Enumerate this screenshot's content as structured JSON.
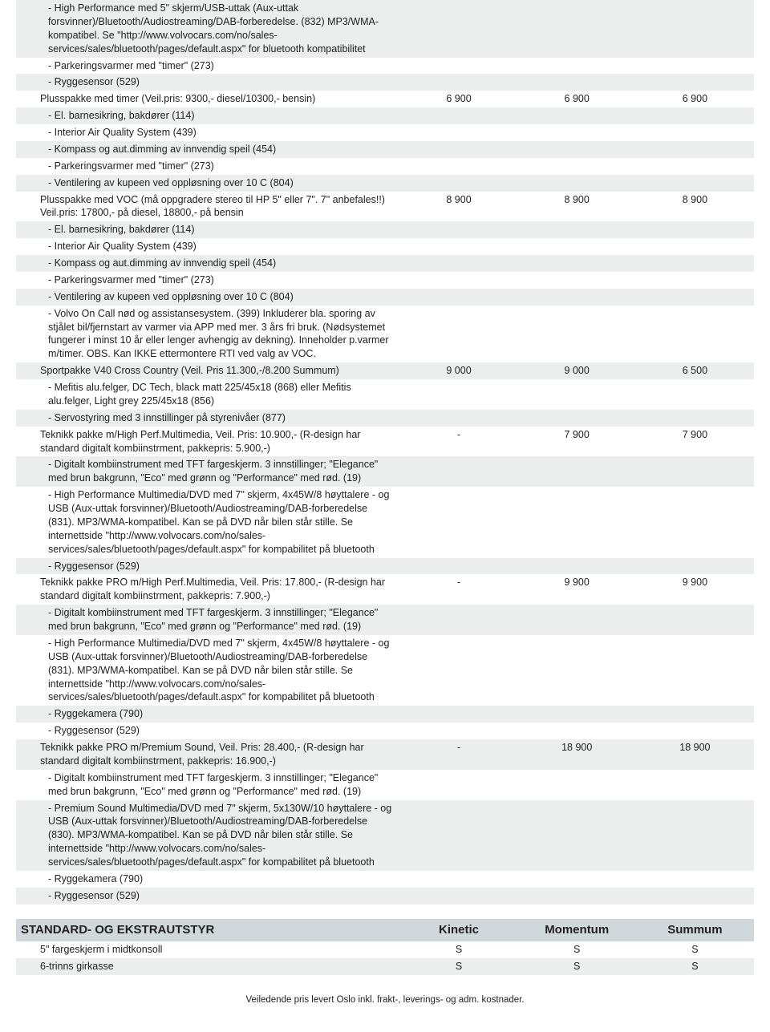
{
  "colors": {
    "row_white": "#ffffff",
    "row_grey": "#eceded",
    "row_header": "#d0d8dc",
    "text": "#222222"
  },
  "fontsizes": {
    "body": 12.5,
    "header": 15,
    "footer": 11.5
  },
  "rows1": [
    {
      "bg": "grey",
      "indent": 2,
      "desc": "- High Performance med 5\" skjerm/USB-uttak (Aux-uttak forsvinner)/Bluetooth/Audiostreaming/DAB-forberedelse. (832) MP3/WMA-kompatibel. Se \"http://www.volvocars.com/no/sales-services/sales/bluetooth/pages/default.aspx\" for bluetooth kompatibilitet",
      "c1": "",
      "c2": "",
      "c3": ""
    },
    {
      "bg": "white",
      "indent": 2,
      "desc": "- Parkeringsvarmer med \"timer\" (273)",
      "c1": "",
      "c2": "",
      "c3": ""
    },
    {
      "bg": "grey",
      "indent": 2,
      "desc": "- Ryggesensor (529)",
      "c1": "",
      "c2": "",
      "c3": ""
    },
    {
      "bg": "white",
      "indent": 1,
      "desc": "Plusspakke med timer (Veil.pris: 9300,- diesel/10300,- bensin)",
      "c1": "6 900",
      "c2": "6 900",
      "c3": "6 900"
    },
    {
      "bg": "grey",
      "indent": 2,
      "desc": "- El. barnesikring, bakdører (114)",
      "c1": "",
      "c2": "",
      "c3": ""
    },
    {
      "bg": "white",
      "indent": 2,
      "desc": "- Interior Air Quality System (439)",
      "c1": "",
      "c2": "",
      "c3": ""
    },
    {
      "bg": "grey",
      "indent": 2,
      "desc": "- Kompass og aut.dimming av innvendig speil (454)",
      "c1": "",
      "c2": "",
      "c3": ""
    },
    {
      "bg": "white",
      "indent": 2,
      "desc": "- Parkeringsvarmer med \"timer\" (273)",
      "c1": "",
      "c2": "",
      "c3": ""
    },
    {
      "bg": "grey",
      "indent": 2,
      "desc": "- Ventilering av kupeen ved oppløsning over 10 C (804)",
      "c1": "",
      "c2": "",
      "c3": ""
    },
    {
      "bg": "white",
      "indent": 1,
      "desc": "Plusspakke med VOC (må oppgradere stereo til HP 5\" eller 7\". 7\" anbefales!!) Veil.pris: 17800,- på diesel, 18800,- på bensin",
      "c1": "8 900",
      "c2": "8 900",
      "c3": "8 900"
    },
    {
      "bg": "grey",
      "indent": 2,
      "desc": "- El. barnesikring, bakdører (114)",
      "c1": "",
      "c2": "",
      "c3": ""
    },
    {
      "bg": "white",
      "indent": 2,
      "desc": "- Interior Air Quality System (439)",
      "c1": "",
      "c2": "",
      "c3": ""
    },
    {
      "bg": "grey",
      "indent": 2,
      "desc": "- Kompass og aut.dimming av innvendig speil (454)",
      "c1": "",
      "c2": "",
      "c3": ""
    },
    {
      "bg": "white",
      "indent": 2,
      "desc": "- Parkeringsvarmer med \"timer\" (273)",
      "c1": "",
      "c2": "",
      "c3": ""
    },
    {
      "bg": "grey",
      "indent": 2,
      "desc": "- Ventilering av kupeen ved oppløsning over 10 C (804)",
      "c1": "",
      "c2": "",
      "c3": ""
    },
    {
      "bg": "white",
      "indent": 2,
      "desc": "- Volvo On Call nød og assistansesystem. (399) Inkluderer bla. sporing av stjålet bil/fjernstart av varmer via APP med mer. 3 års fri bruk. (Nødsystemet fungerer i minst 10 år eller lenger avhengig av dekning). Inneholder p.varmer m/timer. OBS. Kan IKKE ettermontere RTI ved valg av VOC.",
      "c1": "",
      "c2": "",
      "c3": ""
    },
    {
      "bg": "grey",
      "indent": 1,
      "desc": "Sportpakke V40 Cross Country (Veil. Pris 11.300,-/8.200 Summum)",
      "c1": "9 000",
      "c2": "9 000",
      "c3": "6 500"
    },
    {
      "bg": "white",
      "indent": 2,
      "desc": "- Mefitis alu.felger, DC Tech, black matt 225/45x18 (868) eller Mefitis alu.felger, Light grey 225/45x18 (856)",
      "c1": "",
      "c2": "",
      "c3": ""
    },
    {
      "bg": "grey",
      "indent": 2,
      "desc": "- Servostyring med 3 innstillinger på styrenivåer (877)",
      "c1": "",
      "c2": "",
      "c3": ""
    },
    {
      "bg": "white",
      "indent": 1,
      "desc": "Teknikk pakke m/High Perf.Multimedia, Veil. Pris: 10.900,- (R-design har standard digitalt kombiinstrment, pakkepris: 5.900,-)",
      "c1": "-",
      "c2": "7 900",
      "c3": "7 900"
    },
    {
      "bg": "grey",
      "indent": 2,
      "desc": "- Digitalt kombiinstrument med TFT fargeskjerm. 3 innstillinger; \"Elegance\" med brun bakgrunn, \"Eco\" med grønn og \"Performance\" med rød. (19)",
      "c1": "",
      "c2": "",
      "c3": ""
    },
    {
      "bg": "white",
      "indent": 2,
      "desc": "- High Performance Multimedia/DVD med 7\" skjerm, 4x45W/8 høyttalere - og USB (Aux-uttak forsvinner)/Bluetooth/Audiostreaming/DAB-forberedelse (831). MP3/WMA-kompatibel. Kan se på DVD når bilen står stille. Se internettside \"http://www.volvocars.com/no/sales-services/sales/bluetooth/pages/default.aspx\" for kompabilitet på bluetooth",
      "c1": "",
      "c2": "",
      "c3": ""
    },
    {
      "bg": "grey",
      "indent": 2,
      "desc": "- Ryggesensor (529)",
      "c1": "",
      "c2": "",
      "c3": ""
    },
    {
      "bg": "white",
      "indent": 1,
      "desc": "Teknikk pakke PRO m/High Perf.Multimedia, Veil. Pris: 17.800,- (R-design har standard digitalt kombiinstrment, pakkepris: 7.900,-)",
      "c1": "-",
      "c2": "9 900",
      "c3": "9 900"
    },
    {
      "bg": "grey",
      "indent": 2,
      "desc": "- Digitalt kombiinstrument med TFT fargeskjerm. 3 innstillinger; \"Elegance\" med brun bakgrunn, \"Eco\" med grønn og \"Performance\" med rød. (19)",
      "c1": "",
      "c2": "",
      "c3": ""
    },
    {
      "bg": "white",
      "indent": 2,
      "desc": "- High Performance Multimedia/DVD med 7\" skjerm, 4x45W/8 høyttalere - og USB (Aux-uttak forsvinner)/Bluetooth/Audiostreaming/DAB-forberedelse (831). MP3/WMA-kompatibel. Kan se på DVD når bilen står stille. Se internettside \"http://www.volvocars.com/no/sales-services/sales/bluetooth/pages/default.aspx\" for kompabilitet på bluetooth",
      "c1": "",
      "c2": "",
      "c3": ""
    },
    {
      "bg": "grey",
      "indent": 2,
      "desc": "- Ryggekamera (790)",
      "c1": "",
      "c2": "",
      "c3": ""
    },
    {
      "bg": "white",
      "indent": 2,
      "desc": "- Ryggesensor (529)",
      "c1": "",
      "c2": "",
      "c3": ""
    },
    {
      "bg": "grey",
      "indent": 1,
      "desc": "Teknikk pakke PRO m/Premium Sound, Veil. Pris: 28.400,- (R-design har standard digitalt kombiinstrment, pakkepris: 16.900,-)",
      "c1": "-",
      "c2": "18 900",
      "c3": "18 900"
    },
    {
      "bg": "white",
      "indent": 2,
      "desc": "- Digitalt kombiinstrument med TFT fargeskjerm. 3 innstillinger; \"Elegance\" med brun bakgrunn, \"Eco\" med grønn og \"Performance\" med rød. (19)",
      "c1": "",
      "c2": "",
      "c3": ""
    },
    {
      "bg": "grey",
      "indent": 2,
      "desc": "- Premium Sound Multimedia/DVD med 7\" skjerm, 5x130W/10 høyttalere - og USB (Aux-uttak forsvinner)/Bluetooth/Audiostreaming/DAB-forberedelse (830). MP3/WMA-kompatibel. Kan se på DVD når bilen står stille. Se internettside \"http://www.volvocars.com/no/sales-services/sales/bluetooth/pages/default.aspx\" for kompabilitet på bluetooth",
      "c1": "",
      "c2": "",
      "c3": ""
    },
    {
      "bg": "white",
      "indent": 2,
      "desc": "- Ryggekamera (790)",
      "c1": "",
      "c2": "",
      "c3": ""
    },
    {
      "bg": "grey",
      "indent": 2,
      "desc": "- Ryggesensor (529)",
      "c1": "",
      "c2": "",
      "c3": ""
    }
  ],
  "header2": {
    "title": "STANDARD- OG EKSTRAUTSTYR",
    "c1": "Kinetic",
    "c2": "Momentum",
    "c3": "Summum"
  },
  "rows2": [
    {
      "bg": "white",
      "indent": 1,
      "desc": "5\" fargeskjerm i midtkonsoll",
      "c1": "S",
      "c2": "S",
      "c3": "S"
    },
    {
      "bg": "grey",
      "indent": 1,
      "desc": "6-trinns girkasse",
      "c1": "S",
      "c2": "S",
      "c3": "S"
    }
  ],
  "footer": "Veiledende pris levert Oslo inkl. frakt-, leverings- og adm. kostnader."
}
